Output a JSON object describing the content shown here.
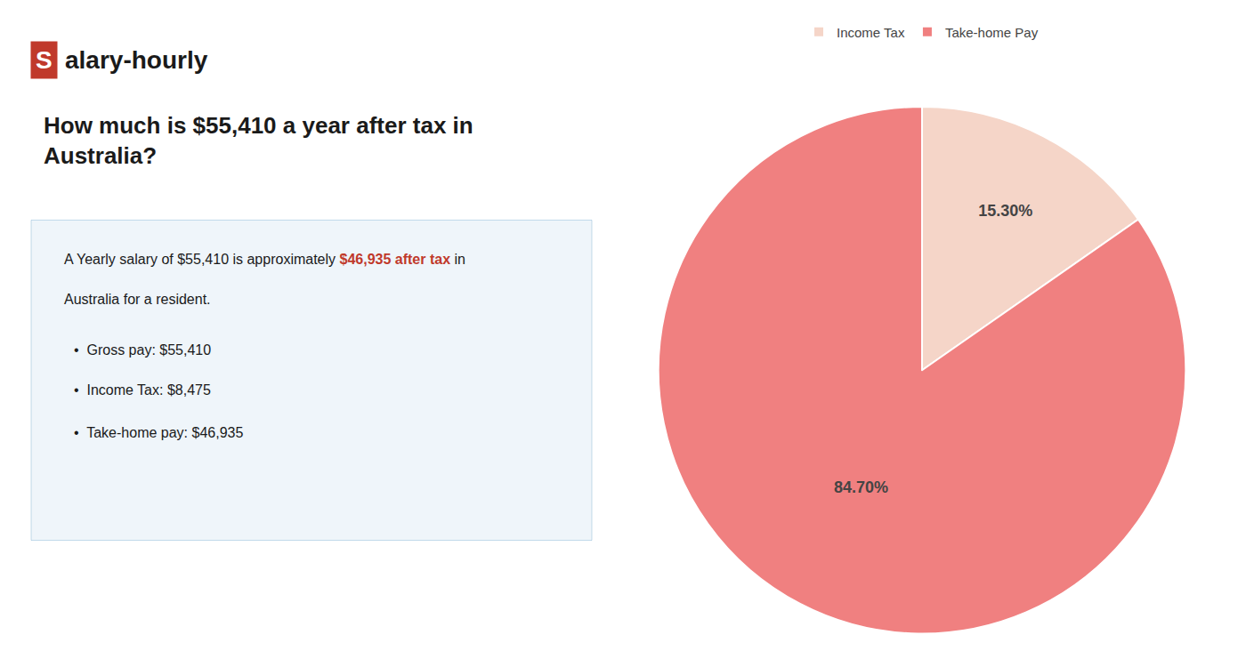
{
  "chart_data": {
    "type": "pie",
    "title": "How much is $55,410 a year after tax in\nAustralia?",
    "categories": [
      "Income Tax",
      "Take-home Pay"
    ],
    "values": [
      15.3,
      84.7
    ],
    "value_labels": [
      "15.30%",
      "84.70%"
    ],
    "data_labels": true,
    "colors": [
      "#f5d5c8",
      "#f08080"
    ],
    "legend": "top",
    "annotations": [
      [
        {
          "text": "S",
          "color": "#c0392b"
        },
        {
          "text": "alary-hourly"
        }
      ],
      [
        {
          "text": "A Yearly salary of $55,410 is approximately "
        },
        {
          "text": "$46,935 after tax",
          "color": "#c0392b"
        },
        {
          "text": " in"
        }
      ],
      [
        {
          "text": "Australia for a resident."
        }
      ],
      [
        {
          "text": "•  Gross pay: $55,410"
        }
      ],
      [
        {
          "text": "•  Income Tax: $8,475"
        }
      ],
      [
        {
          "text": "•  Take-home pay: $46,935"
        }
      ]
    ]
  }
}
